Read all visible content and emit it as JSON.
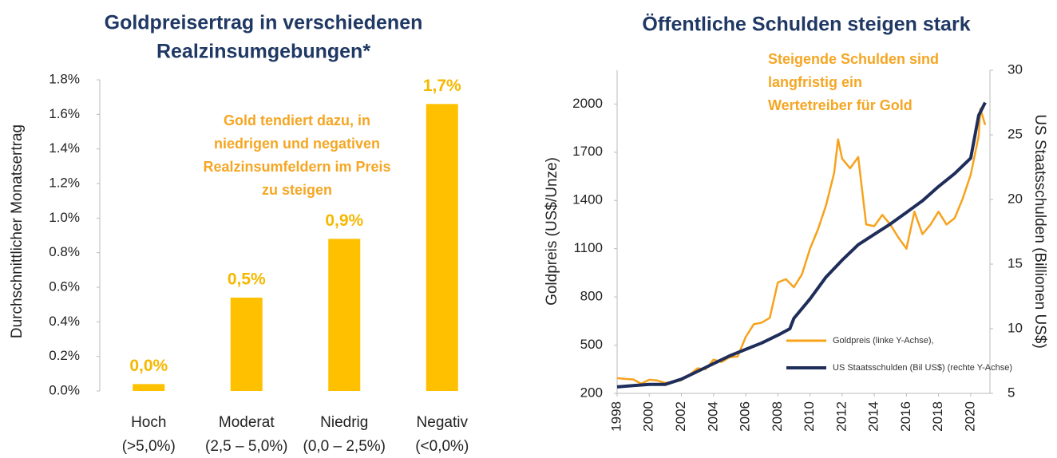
{
  "chart_data": [
    {
      "type": "bar",
      "title": [
        "Goldpreisertrag in verschiedenen",
        "Realzinsumgebungen*"
      ],
      "y_label": "Durchschnittlicher Monatsertrag",
      "annotation": [
        "Gold tendiert dazu, in",
        "niedrigen und negativen",
        "Realzinsumfeldern im Preis",
        "zu steigen"
      ],
      "categories": [
        [
          "Hoch",
          "(>5,0%)"
        ],
        [
          "Moderat",
          "(2,5 – 5,0%)"
        ],
        [
          "Niedrig",
          "(0,0 – 2,5%)"
        ],
        [
          "Negativ",
          "(<0,0%)"
        ]
      ],
      "values": [
        0.04,
        0.54,
        0.88,
        1.66
      ],
      "value_labels": [
        "0,0%",
        "0,5%",
        "0,9%",
        "1,7%"
      ],
      "color": "#ffc000",
      "ylim": [
        0,
        1.8
      ],
      "yticks": [
        {
          "value": 0,
          "label": "0.0%"
        },
        {
          "value": 0.2,
          "label": "0.2%"
        },
        {
          "value": 0.4,
          "label": "0.4%"
        },
        {
          "value": 0.6,
          "label": "0.6%"
        },
        {
          "value": 0.8,
          "label": "0.8%"
        },
        {
          "value": 1.0,
          "label": "1.0%"
        },
        {
          "value": 1.2,
          "label": "1.2%"
        },
        {
          "value": 1.4,
          "label": "1.4%"
        },
        {
          "value": 1.6,
          "label": "1.6%"
        },
        {
          "value": 1.8,
          "label": "1.8%"
        }
      ]
    },
    {
      "type": "line",
      "title": [
        "Öffentliche Schulden steigen stark"
      ],
      "y_label": "Goldpreis (US$/Unze)",
      "y2_label": "US Staatsschulden (Billionen US$)",
      "annotation": [
        "Steigende Schulden sind",
        "langfristig ein",
        "Wertetreiber für Gold"
      ],
      "xlim": [
        1998,
        2020.9
      ],
      "xticks": [
        1998,
        2000,
        2002,
        2004,
        2006,
        2008,
        2010,
        2012,
        2014,
        2016,
        2018,
        2020
      ],
      "ylim": [
        200,
        2210
      ],
      "yticks": [
        200,
        500,
        800,
        1100,
        1400,
        1700,
        2000
      ],
      "y2lim": [
        5,
        30
      ],
      "y2ticks": [
        5,
        10,
        15,
        20,
        25,
        30
      ],
      "series": [
        {
          "name": "Goldpreis (linke Y-Achse),",
          "color": "#f7a21b",
          "x": [
            1998,
            1998.5,
            1999,
            1999.5,
            2000,
            2000.5,
            2001,
            2001.5,
            2002,
            2002.5,
            2003,
            2003.5,
            2004,
            2004.5,
            2005,
            2005.5,
            2006,
            2006.5,
            2007,
            2007.5,
            2008,
            2008.5,
            2009,
            2009.5,
            2010,
            2010.5,
            2011,
            2011.5,
            2011.75,
            2012,
            2012.5,
            2013,
            2013.5,
            2014,
            2014.5,
            2015,
            2015.5,
            2016,
            2016.5,
            2017,
            2017.5,
            2018,
            2018.5,
            2019,
            2019.5,
            2020,
            2020.5,
            2020.6,
            2020.9
          ],
          "values": [
            295,
            290,
            287,
            260,
            285,
            280,
            265,
            270,
            282,
            315,
            356,
            350,
            410,
            395,
            425,
            430,
            550,
            630,
            640,
            670,
            890,
            910,
            860,
            940,
            1100,
            1220,
            1370,
            1570,
            1780,
            1660,
            1600,
            1670,
            1250,
            1240,
            1310,
            1250,
            1170,
            1100,
            1330,
            1190,
            1250,
            1330,
            1250,
            1290,
            1410,
            1560,
            1800,
            1970,
            1870
          ]
        },
        {
          "name": "US Staatsschulden (Bil US$) (rechte Y-Achse)",
          "color": "#1f2d5a",
          "axis": "y2",
          "x": [
            1998,
            1999,
            2000,
            2001,
            2002,
            2003,
            2004,
            2005,
            2006,
            2007,
            2008,
            2008.75,
            2009,
            2010,
            2011,
            2012,
            2013,
            2014,
            2015,
            2016,
            2017,
            2018,
            2019,
            2020,
            2020.5,
            2020.9
          ],
          "values": [
            5.5,
            5.6,
            5.7,
            5.7,
            6.1,
            6.7,
            7.3,
            7.9,
            8.4,
            8.9,
            9.5,
            10.0,
            10.8,
            12.3,
            14.0,
            15.3,
            16.5,
            17.3,
            18.1,
            19.0,
            19.9,
            21.0,
            22.0,
            23.2,
            26.5,
            27.5
          ]
        }
      ]
    }
  ]
}
